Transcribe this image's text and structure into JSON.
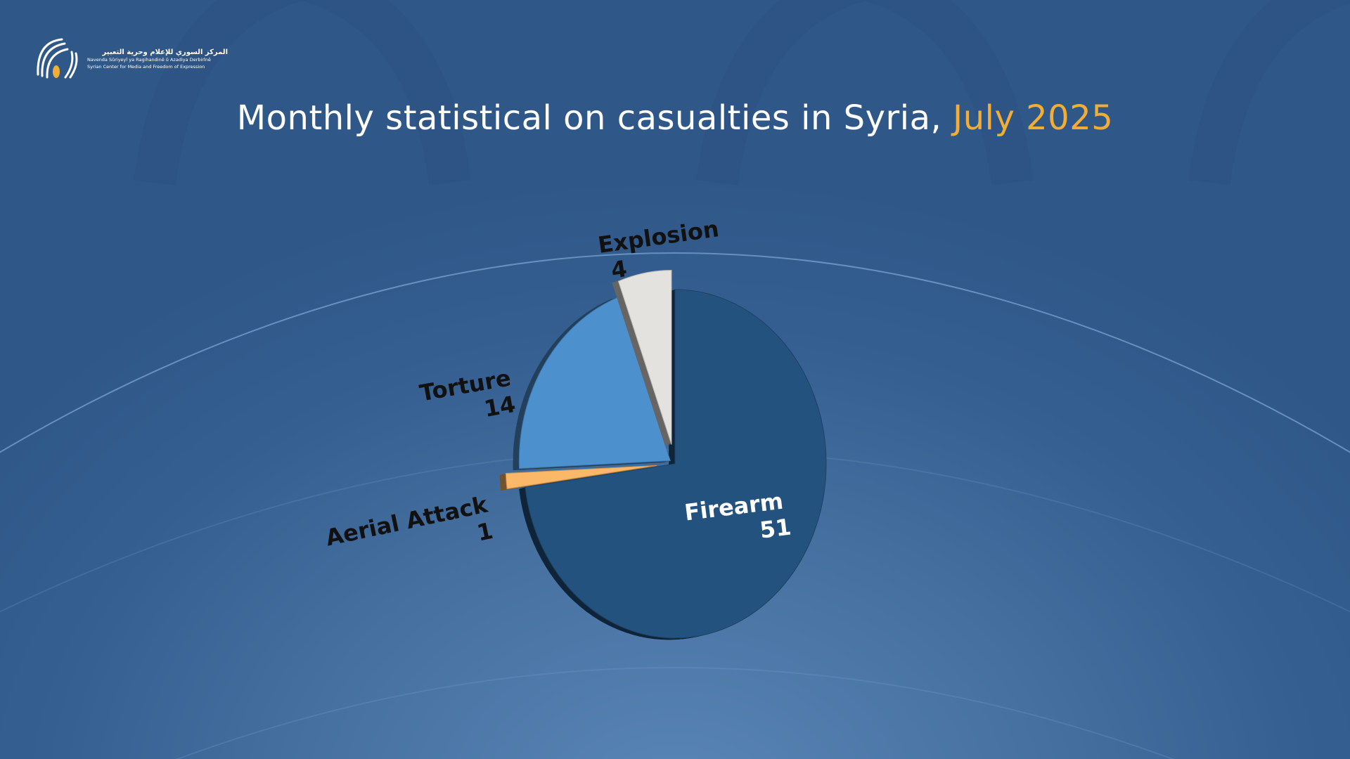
{
  "logo": {
    "name_ar": "المركز السوري للإعلام وحرية التعبير",
    "name_ku": "Navenda Sûriyeyî ya Ragihandinê û Azadiya Derbirînê",
    "name_en": "Syrian Center for Media and Freedom of Expression",
    "icon": "scm-logo-icon"
  },
  "title": {
    "main": "Monthly statistical on casualties in Syria,",
    "highlight": "July 2025"
  },
  "colors": {
    "highlight": "#f2ad37",
    "firearm": "#23527e",
    "torture": "#4d90ce",
    "explosion": "#e4e2df",
    "aerial": "#fbb869"
  },
  "chart_data": {
    "type": "pie",
    "title": "Monthly statistical on casualties in Syria, July 2025",
    "slices": [
      {
        "name": "Firearm",
        "value": 51,
        "color": "#23527e"
      },
      {
        "name": "Aerial Attack",
        "value": 1,
        "color": "#fbb869"
      },
      {
        "name": "Torture",
        "value": 14,
        "color": "#4d90ce"
      },
      {
        "name": "Explosion",
        "value": 4,
        "color": "#e4e2df"
      }
    ]
  }
}
